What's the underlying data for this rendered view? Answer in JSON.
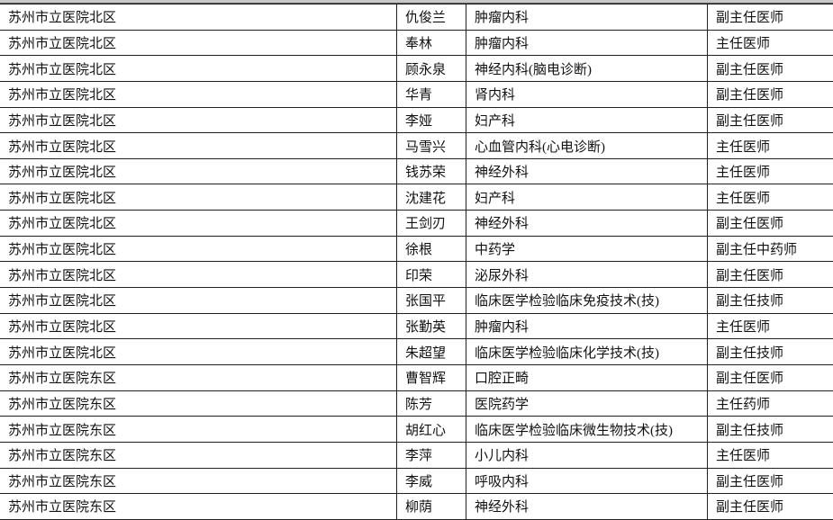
{
  "rows": [
    [
      "苏州市立医院北区",
      "仇俊兰",
      "肿瘤内科",
      "副主任医师"
    ],
    [
      "苏州市立医院北区",
      "奉林",
      "肿瘤内科",
      "主任医师"
    ],
    [
      "苏州市立医院北区",
      "顾永泉",
      "神经内科(脑电诊断)",
      "副主任医师"
    ],
    [
      "苏州市立医院北区",
      "华青",
      "肾内科",
      "副主任医师"
    ],
    [
      "苏州市立医院北区",
      "李娅",
      "妇产科",
      "副主任医师"
    ],
    [
      "苏州市立医院北区",
      "马雪兴",
      "心血管内科(心电诊断)",
      "主任医师"
    ],
    [
      "苏州市立医院北区",
      "钱苏荣",
      "神经外科",
      "主任医师"
    ],
    [
      "苏州市立医院北区",
      "沈建花",
      "妇产科",
      "主任医师"
    ],
    [
      "苏州市立医院北区",
      "王剑刃",
      "神经外科",
      "副主任医师"
    ],
    [
      "苏州市立医院北区",
      "徐根",
      "中药学",
      "副主任中药师"
    ],
    [
      "苏州市立医院北区",
      "印荣",
      "泌尿外科",
      "副主任医师"
    ],
    [
      "苏州市立医院北区",
      "张国平",
      "临床医学检验临床免疫技术(技)",
      "副主任技师"
    ],
    [
      "苏州市立医院北区",
      "张勤英",
      "肿瘤内科",
      "主任医师"
    ],
    [
      "苏州市立医院北区",
      "朱超望",
      "临床医学检验临床化学技术(技)",
      "副主任技师"
    ],
    [
      "苏州市立医院东区",
      "曹智辉",
      "口腔正畸",
      "副主任医师"
    ],
    [
      "苏州市立医院东区",
      "陈芳",
      "医院药学",
      "主任药师"
    ],
    [
      "苏州市立医院东区",
      "胡红心",
      "临床医学检验临床微生物技术(技)",
      "副主任技师"
    ],
    [
      "苏州市立医院东区",
      "李萍",
      "小儿内科",
      "主任医师"
    ],
    [
      "苏州市立医院东区",
      "李威",
      "呼吸内科",
      "副主任医师"
    ],
    [
      "苏州市立医院东区",
      "柳荫",
      "神经外科",
      "副主任医师"
    ]
  ]
}
